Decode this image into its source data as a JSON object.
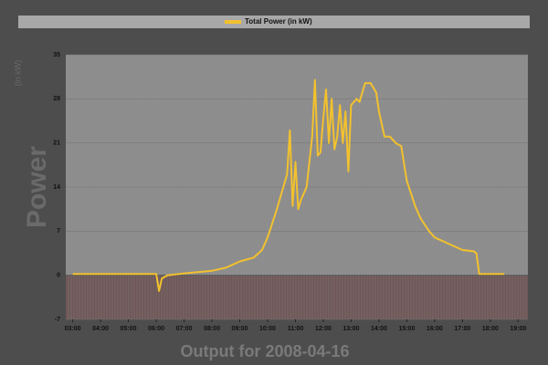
{
  "chart_data": {
    "type": "line",
    "legend_title": "Total Power (in kW)",
    "y_label": "Power",
    "y_unit_label": "(in kW)",
    "x_label": "Output for 2008-04-16",
    "color": "#f2c12e",
    "x": [
      3.0,
      5.5,
      6.0,
      6.1,
      6.2,
      6.4,
      7.0,
      8.0,
      8.5,
      9.0,
      9.5,
      9.8,
      10.0,
      10.3,
      10.5,
      10.7,
      10.8,
      10.9,
      11.0,
      11.1,
      11.2,
      11.4,
      11.6,
      11.7,
      11.8,
      11.9,
      12.0,
      12.1,
      12.2,
      12.3,
      12.4,
      12.5,
      12.6,
      12.7,
      12.8,
      12.9,
      13.0,
      13.2,
      13.3,
      13.5,
      13.7,
      13.9,
      14.0,
      14.2,
      14.4,
      14.6,
      14.8,
      15.0,
      15.3,
      15.5,
      15.8,
      16.0,
      16.5,
      17.0,
      17.4,
      17.5,
      17.6,
      18.5
    ],
    "series": [
      {
        "name": "Total Power (in kW)",
        "color": "#f2c12e",
        "values": [
          0.2,
          0.2,
          0.2,
          -2.5,
          -0.5,
          0,
          0.3,
          0.7,
          1.2,
          2.2,
          2.8,
          4,
          6,
          10,
          13,
          16,
          23,
          11,
          18,
          10.5,
          12,
          14,
          22,
          31,
          19,
          19.5,
          25,
          29.5,
          21,
          28,
          20,
          22,
          27,
          21,
          26,
          16.5,
          27,
          28,
          27.5,
          30.5,
          30.5,
          29,
          26,
          22,
          22,
          21,
          20.5,
          15,
          11,
          9,
          7,
          6,
          5,
          4,
          3.8,
          3.5,
          0.2,
          0.2
        ]
      }
    ],
    "xlim": [
      2.75,
      19.35
    ],
    "ylim": [
      -7,
      35
    ],
    "yticks": [
      -7,
      0,
      7,
      14,
      21,
      28,
      35
    ],
    "xticks": [
      {
        "value": 3,
        "label": "03:00"
      },
      {
        "value": 4,
        "label": "04:00"
      },
      {
        "value": 5,
        "label": "05:00"
      },
      {
        "value": 6,
        "label": "06:00"
      },
      {
        "value": 7,
        "label": "07:00"
      },
      {
        "value": 8,
        "label": "08:00"
      },
      {
        "value": 9,
        "label": "09:00"
      },
      {
        "value": 10,
        "label": "10:00"
      },
      {
        "value": 11,
        "label": "11:00"
      },
      {
        "value": 12,
        "label": "12:00"
      },
      {
        "value": 13,
        "label": "13:00"
      },
      {
        "value": 14,
        "label": "14:00"
      },
      {
        "value": 15,
        "label": "15:00"
      },
      {
        "value": 16,
        "label": "16:00"
      },
      {
        "value": 17,
        "label": "17:00"
      },
      {
        "value": 18,
        "label": "18:00"
      },
      {
        "value": 19,
        "label": "19:00"
      }
    ]
  }
}
